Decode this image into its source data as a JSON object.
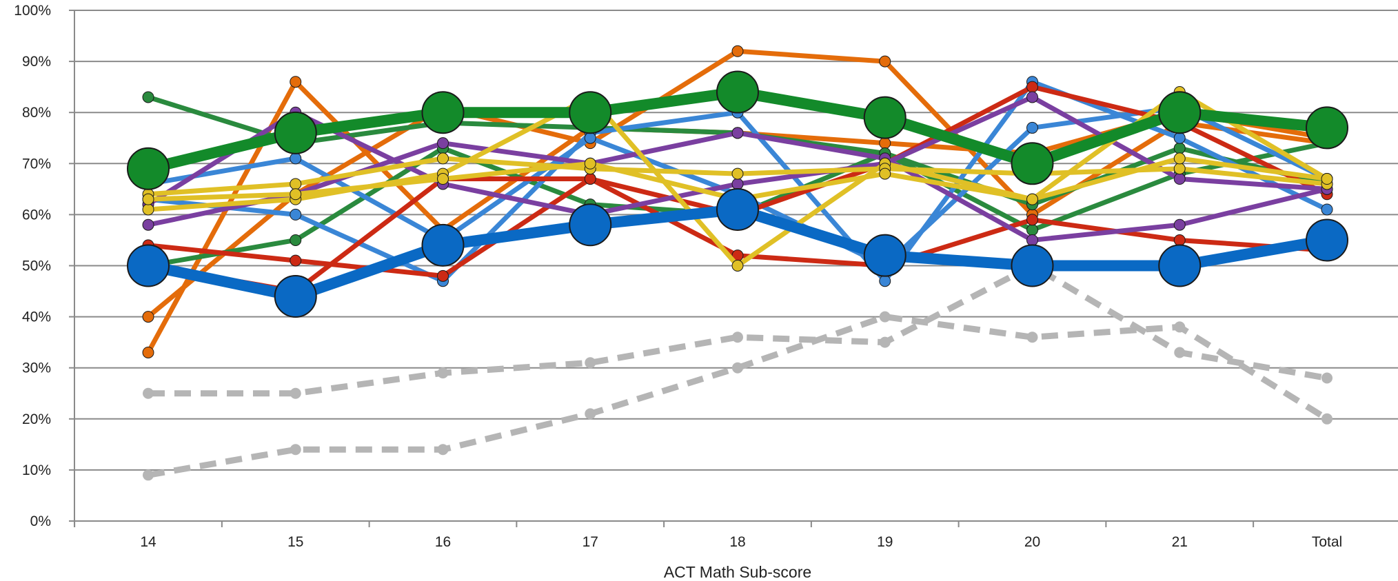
{
  "chart_data": {
    "type": "line",
    "title": "",
    "xlabel": "ACT Math Sub-score",
    "ylabel": "",
    "categories": [
      "14",
      "15",
      "16",
      "17",
      "18",
      "19",
      "20",
      "21",
      "Total"
    ],
    "y_ticks": [
      "0%",
      "10%",
      "20%",
      "30%",
      "40%",
      "50%",
      "60%",
      "70%",
      "80%",
      "90%",
      "100%"
    ],
    "ylim": [
      0,
      100
    ],
    "y_unit": "percent",
    "grid": true,
    "legend": "none",
    "series": [
      {
        "color": "#e46c0a",
        "style": "solid",
        "emphasis": false,
        "values": [
          40,
          64,
          81,
          74,
          92,
          90,
          60,
          78,
          74
        ]
      },
      {
        "color": "#e46c0a",
        "style": "solid",
        "emphasis": false,
        "values": [
          33,
          86,
          57,
          77,
          76,
          74,
          72,
          80,
          75
        ]
      },
      {
        "color": "#2a8a3e",
        "style": "solid",
        "emphasis": false,
        "values": [
          83,
          74,
          78,
          77,
          76,
          72,
          62,
          73,
          66
        ]
      },
      {
        "color": "#2a8a3e",
        "style": "solid",
        "emphasis": false,
        "values": [
          50,
          55,
          73,
          62,
          60,
          72,
          57,
          68,
          74
        ]
      },
      {
        "color": "#3a86d6",
        "style": "solid",
        "emphasis": false,
        "values": [
          63,
          60,
          47,
          76,
          80,
          47,
          86,
          75,
          61
        ]
      },
      {
        "color": "#3a86d6",
        "style": "solid",
        "emphasis": false,
        "values": [
          66,
          71,
          55,
          75,
          64,
          50,
          77,
          81,
          67
        ]
      },
      {
        "color": "#cc2a14",
        "style": "solid",
        "emphasis": false,
        "values": [
          54,
          51,
          48,
          67,
          52,
          50,
          59,
          55,
          53
        ]
      },
      {
        "color": "#cc2a14",
        "style": "solid",
        "emphasis": false,
        "values": [
          50,
          45,
          67,
          67,
          60,
          70,
          85,
          78,
          64
        ]
      },
      {
        "color": "#7a3fa0",
        "style": "solid",
        "emphasis": false,
        "values": [
          58,
          64,
          74,
          70,
          76,
          71,
          55,
          58,
          65
        ]
      },
      {
        "color": "#7a3fa0",
        "style": "solid",
        "emphasis": false,
        "values": [
          62,
          80,
          66,
          60,
          66,
          70,
          83,
          67,
          65
        ]
      },
      {
        "color": "#e0c026",
        "style": "solid",
        "emphasis": false,
        "values": [
          61,
          63,
          68,
          83,
          50,
          70,
          63,
          84,
          67
        ]
      },
      {
        "color": "#e0c026",
        "style": "solid",
        "emphasis": false,
        "values": [
          64,
          66,
          71,
          69,
          68,
          69,
          68,
          69,
          66
        ]
      },
      {
        "color": "#e0c026",
        "style": "solid",
        "emphasis": false,
        "values": [
          63,
          64,
          67,
          70,
          63,
          68,
          63,
          71,
          67
        ]
      },
      {
        "color": "#b5b5b5",
        "style": "dashed",
        "emphasis": false,
        "values": [
          25,
          25,
          29,
          31,
          36,
          35,
          50,
          33,
          28
        ]
      },
      {
        "color": "#b5b5b5",
        "style": "dashed",
        "emphasis": false,
        "values": [
          9,
          14,
          14,
          21,
          30,
          40,
          36,
          38,
          20
        ]
      },
      {
        "color": "#0a69c4",
        "style": "solid",
        "emphasis": true,
        "values": [
          50,
          44,
          54,
          58,
          61,
          52,
          50,
          50,
          55
        ]
      },
      {
        "color": "#138a2a",
        "style": "solid",
        "emphasis": true,
        "values": [
          69,
          76,
          80,
          80,
          84,
          79,
          70,
          80,
          77
        ]
      }
    ]
  }
}
